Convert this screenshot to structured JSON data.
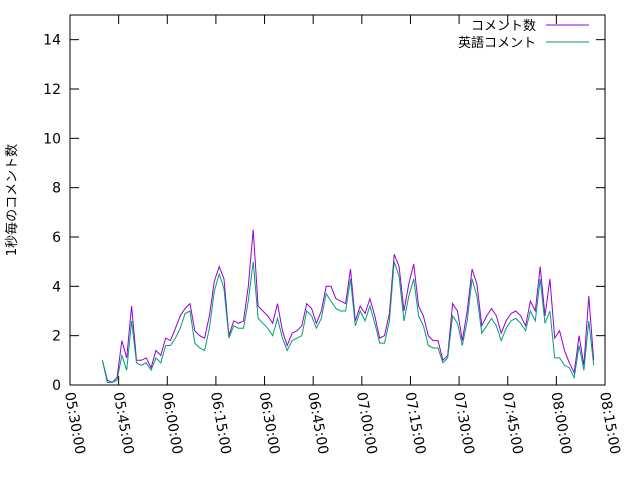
{
  "chart_data": {
    "type": "line",
    "xlabel": "",
    "ylabel": "1秒毎のコメント数",
    "ylim": [
      0,
      15
    ],
    "yticks": [
      0,
      2,
      4,
      6,
      8,
      10,
      12,
      14
    ],
    "xlim": [
      "05:30:00",
      "08:15:00"
    ],
    "xticks": [
      "05:30:00",
      "05:45:00",
      "06:00:00",
      "06:15:00",
      "06:30:00",
      "06:45:00",
      "07:00:00",
      "07:15:00",
      "07:30:00",
      "07:45:00",
      "08:00:00",
      "08:15:00"
    ],
    "grid": false,
    "legend_position": "top-right",
    "series": [
      {
        "name": "コメント数",
        "color": "#9400d3",
        "x": [
          "05:40:00",
          "05:41:30",
          "05:43:00",
          "05:44:30",
          "05:46:00",
          "05:47:30",
          "05:49:00",
          "05:50:30",
          "05:52:00",
          "05:53:30",
          "05:55:00",
          "05:56:30",
          "05:58:00",
          "05:59:30",
          "06:01:00",
          "06:02:30",
          "06:04:00",
          "06:05:30",
          "06:07:00",
          "06:08:30",
          "06:10:00",
          "06:11:30",
          "06:13:00",
          "06:14:30",
          "06:16:00",
          "06:17:30",
          "06:19:00",
          "06:20:30",
          "06:22:00",
          "06:23:30",
          "06:25:00",
          "06:26:30",
          "06:28:00",
          "06:29:30",
          "06:31:00",
          "06:32:30",
          "06:34:00",
          "06:35:30",
          "06:37:00",
          "06:38:30",
          "06:40:00",
          "06:41:30",
          "06:43:00",
          "06:44:30",
          "06:46:00",
          "06:47:30",
          "06:49:00",
          "06:50:30",
          "06:52:00",
          "06:53:30",
          "06:55:00",
          "06:56:30",
          "06:58:00",
          "06:59:30",
          "07:01:00",
          "07:02:30",
          "07:04:00",
          "07:05:30",
          "07:07:00",
          "07:08:30",
          "07:10:00",
          "07:11:30",
          "07:13:00",
          "07:14:30",
          "07:16:00",
          "07:17:30",
          "07:19:00",
          "07:20:30",
          "07:22:00",
          "07:23:30",
          "07:25:00",
          "07:26:30",
          "07:28:00",
          "07:29:30",
          "07:31:00",
          "07:32:30",
          "07:34:00",
          "07:35:30",
          "07:37:00",
          "07:38:30",
          "07:40:00",
          "07:41:30",
          "07:43:00",
          "07:44:30",
          "07:46:00",
          "07:47:30",
          "07:49:00",
          "07:50:30",
          "07:52:00",
          "07:53:30",
          "07:55:00",
          "07:56:30",
          "07:58:00",
          "07:59:30",
          "08:01:00",
          "08:02:30",
          "08:04:00",
          "08:05:30",
          "08:07:00",
          "08:08:30",
          "08:10:00",
          "08:11:30",
          "08:13:00",
          "08:14:30"
        ],
        "values": [
          1.0,
          0.2,
          0.1,
          0.3,
          1.8,
          1.1,
          3.2,
          1.0,
          1.0,
          1.1,
          0.7,
          1.4,
          1.2,
          1.9,
          1.8,
          2.3,
          2.8,
          3.1,
          3.3,
          2.2,
          2.0,
          1.9,
          2.8,
          4.2,
          4.8,
          4.3,
          2.0,
          2.6,
          2.5,
          2.6,
          4.0,
          6.3,
          3.2,
          3.0,
          2.8,
          2.5,
          3.3,
          2.2,
          1.6,
          2.1,
          2.2,
          2.4,
          3.3,
          3.1,
          2.5,
          3.0,
          4.0,
          4.0,
          3.5,
          3.4,
          3.3,
          4.7,
          2.6,
          3.2,
          2.9,
          3.5,
          2.8,
          1.9,
          2.0,
          2.9,
          5.3,
          4.8,
          3.0,
          4.1,
          4.9,
          3.2,
          2.8,
          2.0,
          1.8,
          1.8,
          1.0,
          1.2,
          3.3,
          3.0,
          1.8,
          3.0,
          4.7,
          4.1,
          2.4,
          2.8,
          3.1,
          2.8,
          2.1,
          2.6,
          2.9,
          3.0,
          2.8,
          2.4,
          3.4,
          3.0,
          4.8,
          2.8,
          4.3,
          1.9,
          2.2,
          1.4,
          0.9,
          0.5,
          2.0,
          0.8,
          3.6,
          1.0,
          null,
          null
        ]
      },
      {
        "name": "英語コメント",
        "color": "#009e73",
        "x": [
          "05:40:00",
          "05:41:30",
          "05:43:00",
          "05:44:30",
          "05:46:00",
          "05:47:30",
          "05:49:00",
          "05:50:30",
          "05:52:00",
          "05:53:30",
          "05:55:00",
          "05:56:30",
          "05:58:00",
          "05:59:30",
          "06:01:00",
          "06:02:30",
          "06:04:00",
          "06:05:30",
          "06:07:00",
          "06:08:30",
          "06:10:00",
          "06:11:30",
          "06:13:00",
          "06:14:30",
          "06:16:00",
          "06:17:30",
          "06:19:00",
          "06:20:30",
          "06:22:00",
          "06:23:30",
          "06:25:00",
          "06:26:30",
          "06:28:00",
          "06:29:30",
          "06:31:00",
          "06:32:30",
          "06:34:00",
          "06:35:30",
          "06:37:00",
          "06:38:30",
          "06:40:00",
          "06:41:30",
          "06:43:00",
          "06:44:30",
          "06:46:00",
          "06:47:30",
          "06:49:00",
          "06:50:30",
          "06:52:00",
          "06:53:30",
          "06:55:00",
          "06:56:30",
          "06:58:00",
          "06:59:30",
          "07:01:00",
          "07:02:30",
          "07:04:00",
          "07:05:30",
          "07:07:00",
          "07:08:30",
          "07:10:00",
          "07:11:30",
          "07:13:00",
          "07:14:30",
          "07:16:00",
          "07:17:30",
          "07:19:00",
          "07:20:30",
          "07:22:00",
          "07:23:30",
          "07:25:00",
          "07:26:30",
          "07:28:00",
          "07:29:30",
          "07:31:00",
          "07:32:30",
          "07:34:00",
          "07:35:30",
          "07:37:00",
          "07:38:30",
          "07:40:00",
          "07:41:30",
          "07:43:00",
          "07:44:30",
          "07:46:00",
          "07:47:30",
          "07:49:00",
          "07:50:30",
          "07:52:00",
          "07:53:30",
          "07:55:00",
          "07:56:30",
          "07:58:00",
          "07:59:30",
          "08:01:00",
          "08:02:30",
          "08:04:00",
          "08:05:30",
          "08:07:00",
          "08:08:30",
          "08:10:00",
          "08:11:30",
          "08:13:00",
          "08:14:30"
        ],
        "values": [
          1.0,
          0.1,
          0.1,
          0.2,
          1.2,
          0.6,
          2.6,
          0.9,
          0.8,
          0.9,
          0.6,
          1.1,
          0.9,
          1.6,
          1.6,
          1.9,
          2.3,
          2.9,
          3.0,
          1.7,
          1.5,
          1.4,
          2.3,
          3.8,
          4.5,
          3.9,
          1.9,
          2.4,
          2.3,
          2.3,
          3.4,
          5.0,
          2.7,
          2.5,
          2.3,
          2.0,
          2.7,
          1.9,
          1.4,
          1.8,
          1.9,
          2.0,
          3.0,
          2.8,
          2.3,
          2.7,
          3.7,
          3.4,
          3.1,
          3.0,
          3.0,
          4.3,
          2.4,
          3.0,
          2.6,
          3.2,
          2.5,
          1.7,
          1.7,
          2.6,
          5.0,
          4.4,
          2.6,
          3.6,
          4.3,
          2.8,
          2.4,
          1.6,
          1.5,
          1.5,
          0.9,
          1.1,
          2.8,
          2.5,
          1.6,
          2.6,
          4.3,
          3.6,
          2.1,
          2.4,
          2.7,
          2.4,
          1.8,
          2.3,
          2.6,
          2.7,
          2.5,
          2.2,
          3.0,
          2.6,
          4.3,
          2.5,
          3.0,
          1.1,
          1.1,
          0.8,
          0.7,
          0.3,
          1.6,
          0.6,
          2.6,
          0.8,
          null,
          null
        ]
      }
    ]
  }
}
